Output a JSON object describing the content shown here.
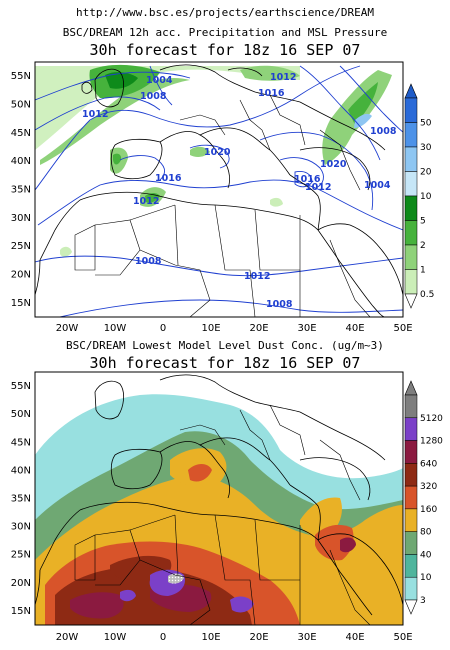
{
  "header": {
    "url": "http://www.bsc.es/projects/earthscience/DREAM"
  },
  "panels": {
    "top": {
      "title_line1": "BSC/DREAM 12h acc. Precipitation and MSL Pressure",
      "title_line2": "30h forecast for 18z 16 SEP 07",
      "lat_labels": [
        "55N",
        "50N",
        "45N",
        "40N",
        "35N",
        "30N",
        "25N",
        "20N",
        "15N"
      ],
      "lon_labels": [
        "20W",
        "10W",
        "0",
        "10E",
        "20E",
        "30E",
        "40E",
        "50E"
      ],
      "isobar_labels": [
        "1004",
        "1008",
        "1012",
        "1016",
        "1020",
        "1012",
        "1016",
        "1008",
        "1020",
        "1016",
        "1012",
        "1004",
        "1012",
        "1008",
        "1012",
        "1008"
      ],
      "colorbar": {
        "labels": [
          "50",
          "30",
          "20",
          "10",
          "5",
          "2",
          "1",
          "0.5"
        ],
        "colors": [
          "#2a6ad8",
          "#4d92e8",
          "#8ec6f2",
          "#c6e6f7",
          "#0e8a1a",
          "#46b23c",
          "#8fd27a",
          "#cbeeb8"
        ]
      }
    },
    "bottom": {
      "title_line1": "BSC/DREAM Lowest Model Level Dust Conc. (ug/m~3)",
      "title_line2": "30h forecast for 18z 16 SEP 07",
      "lat_labels": [
        "55N",
        "50N",
        "45N",
        "40N",
        "35N",
        "30N",
        "25N",
        "20N",
        "15N"
      ],
      "lon_labels": [
        "20W",
        "10W",
        "0",
        "10E",
        "20E",
        "30E",
        "40E",
        "50E"
      ],
      "colorbar": {
        "labels": [
          "5120",
          "1280",
          "640",
          "320",
          "160",
          "80",
          "40",
          "10",
          "3"
        ],
        "colors": [
          "#7e7e7e",
          "#7b40c8",
          "#8b1a40",
          "#8e2a14",
          "#d8542a",
          "#e9b126",
          "#6fa873",
          "#4fb59d",
          "#98e0e0"
        ]
      }
    }
  }
}
